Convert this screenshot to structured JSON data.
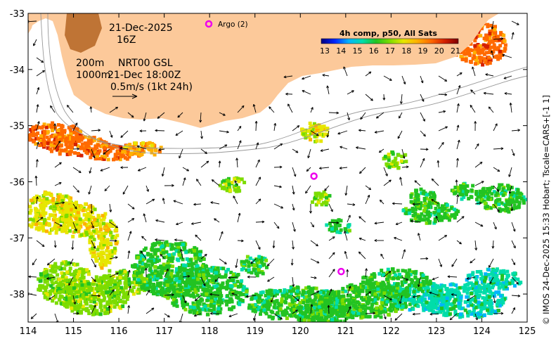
{
  "map": {
    "date": "21-Dec-2025",
    "hour": "16Z",
    "depth_line1": "200m",
    "depth_line2": "1000m",
    "product": "NRT00 GSL",
    "vector_time": "21-Dec 18:00Z",
    "scale_label": "0.5m/s (1kt 24h)",
    "argo_legend": "Argo (2)",
    "sst_title": "4h comp, p50, All Sats",
    "sst_ticks": [
      "13",
      "14",
      "15",
      "16",
      "17",
      "18",
      "19",
      "20",
      "21"
    ],
    "credit": "© IMOS 24-Dec-2025 15:33 Hobart; Tscale=CARS+[-1 1]",
    "lon_ticks": [
      "114",
      "115",
      "116",
      "117",
      "118",
      "119",
      "120",
      "121",
      "122",
      "123",
      "124",
      "125"
    ],
    "lat_ticks": [
      "-33",
      "-34",
      "-35",
      "-36",
      "-37",
      "-38"
    ],
    "argo_floats": [
      {
        "lon": 120.3,
        "lat": -35.9
      },
      {
        "lon": 120.9,
        "lat": -37.6
      }
    ],
    "colors": {
      "land": "#fcc99a",
      "argo": "#ee00ee",
      "sst_scale": [
        "#00007f",
        "#0025ff",
        "#00b4ff",
        "#00ddaa",
        "#22c322",
        "#7ddc00",
        "#e6e600",
        "#ffb000",
        "#ff6a00",
        "#d42000",
        "#7f0000"
      ]
    }
  }
}
